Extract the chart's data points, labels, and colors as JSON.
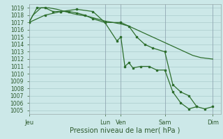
{
  "xlabel": "Pression niveau de la mer( hPa )",
  "ylim": [
    1004.5,
    1019.5
  ],
  "yticks": [
    1005,
    1006,
    1007,
    1008,
    1009,
    1010,
    1011,
    1012,
    1013,
    1014,
    1015,
    1016,
    1017,
    1018,
    1019
  ],
  "background_color": "#cce8e8",
  "grid_color": "#aacccc",
  "line_color": "#2d6e2d",
  "vline_color": "#8899aa",
  "xtick_labels": [
    "Jeu",
    "Lun",
    "Ven",
    "Sam",
    "Dim"
  ],
  "xtick_positions": [
    0,
    9.5,
    11.5,
    17,
    23
  ],
  "xlim": [
    0,
    24
  ],
  "line1_x": [
    0,
    0.5,
    1.5,
    2.5,
    3.5,
    4.5,
    5.5,
    6.5,
    7.5,
    8.5,
    9.5,
    10.5,
    11.5,
    12.5,
    13.5,
    14.5,
    15.5,
    16.5,
    17.5,
    18.5,
    19.5,
    20.5,
    21.5,
    23
  ],
  "line1_y": [
    1017,
    1018,
    1019,
    1019,
    1018.8,
    1018.5,
    1018.2,
    1018,
    1017.8,
    1017.5,
    1017.2,
    1017,
    1016.8,
    1016.5,
    1016,
    1015.5,
    1015,
    1014.5,
    1014,
    1013.5,
    1013,
    1012.5,
    1012.2,
    1012
  ],
  "line2_x": [
    0,
    1,
    2,
    3,
    4,
    5,
    6,
    7,
    8,
    9.5,
    11,
    11.5,
    12,
    12.5,
    13,
    14,
    15,
    16,
    17,
    18,
    19,
    20,
    21
  ],
  "line2_y": [
    1017,
    1019,
    1019,
    1018.5,
    1018.5,
    1018.5,
    1018.3,
    1018,
    1017.5,
    1017,
    1014.5,
    1015,
    1011,
    1011.5,
    1010.8,
    1011,
    1011,
    1010.5,
    1010.5,
    1007.5,
    1006,
    1005.2,
    1005.5
  ],
  "line3_x": [
    0,
    2,
    4,
    6,
    8,
    9.5,
    11.5,
    12.5,
    13.5,
    14.5,
    15.5,
    17,
    18,
    19,
    20,
    21,
    22,
    23
  ],
  "line3_y": [
    1017,
    1018,
    1018.5,
    1018.8,
    1018.5,
    1017,
    1017,
    1016.5,
    1015,
    1014,
    1013.5,
    1013,
    1008.5,
    1007.5,
    1007,
    1005.5,
    1005.2,
    1005.5
  ],
  "vline_positions": [
    0,
    9.5,
    11.5,
    17,
    23
  ]
}
